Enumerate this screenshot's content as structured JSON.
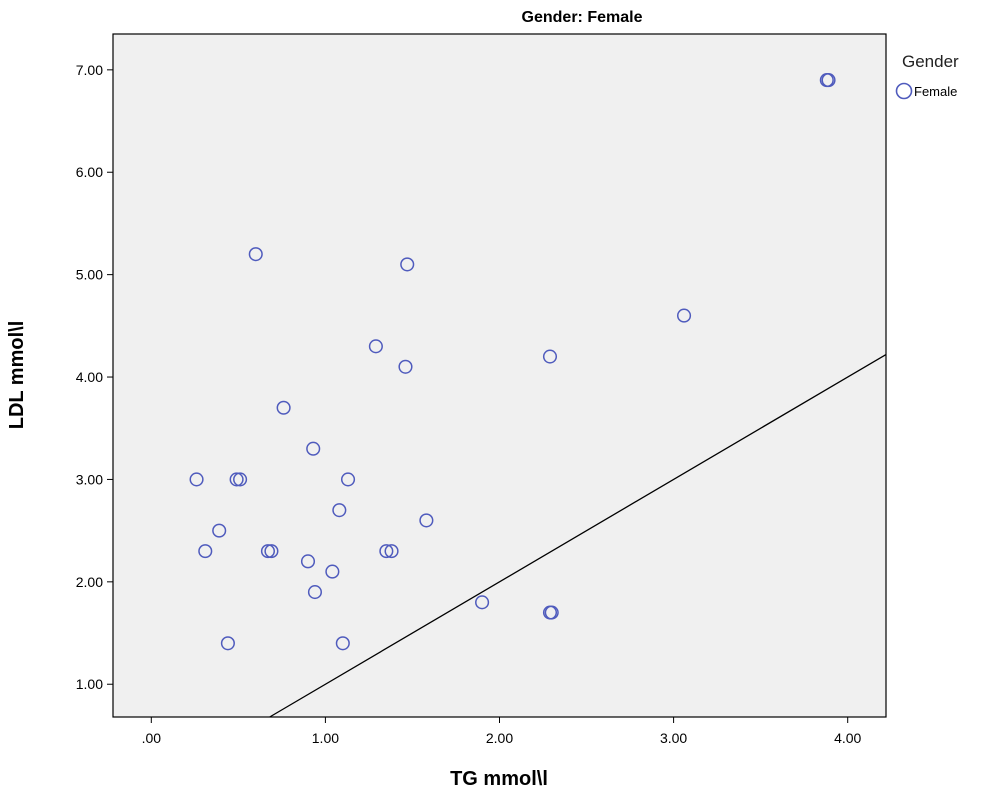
{
  "chart_data": {
    "type": "scatter",
    "title": "Gender: Female",
    "xlabel": "TG mmol\\l",
    "ylabel": "LDL mmol\\l",
    "xlim": [
      -0.22,
      4.22
    ],
    "ylim": [
      0.68,
      7.35
    ],
    "x_ticks": [
      0,
      1,
      2,
      3,
      4
    ],
    "x_tick_labels": [
      ".00",
      "1.00",
      "2.00",
      "3.00",
      "4.00"
    ],
    "y_ticks": [
      1,
      2,
      3,
      4,
      5,
      6,
      7
    ],
    "y_tick_labels": [
      "1.00",
      "2.00",
      "3.00",
      "4.00",
      "5.00",
      "6.00",
      "7.00"
    ],
    "grid": false,
    "reference_line": "y = x",
    "legend": {
      "title": "Gender",
      "placement": "right",
      "entries": [
        "Female"
      ]
    },
    "series": [
      {
        "name": "Female",
        "color": "#4f5bbd",
        "marker": "hollow-circle",
        "points": [
          [
            0.6,
            5.2
          ],
          [
            1.47,
            5.1
          ],
          [
            1.29,
            4.3
          ],
          [
            1.46,
            4.1
          ],
          [
            0.76,
            3.7
          ],
          [
            0.93,
            3.3
          ],
          [
            0.26,
            3.0
          ],
          [
            0.49,
            3.0
          ],
          [
            0.51,
            3.0
          ],
          [
            1.13,
            3.0
          ],
          [
            1.08,
            2.7
          ],
          [
            0.39,
            2.5
          ],
          [
            1.58,
            2.6
          ],
          [
            0.31,
            2.3
          ],
          [
            0.67,
            2.3
          ],
          [
            0.69,
            2.3
          ],
          [
            1.35,
            2.3
          ],
          [
            1.38,
            2.3
          ],
          [
            0.9,
            2.2
          ],
          [
            1.04,
            2.1
          ],
          [
            0.94,
            1.9
          ],
          [
            0.44,
            1.4
          ],
          [
            1.1,
            1.4
          ],
          [
            1.9,
            1.8
          ],
          [
            2.29,
            1.7
          ],
          [
            2.3,
            1.7
          ],
          [
            2.29,
            4.2
          ],
          [
            3.06,
            4.6
          ],
          [
            3.88,
            6.9
          ],
          [
            3.89,
            6.9
          ]
        ]
      }
    ]
  }
}
